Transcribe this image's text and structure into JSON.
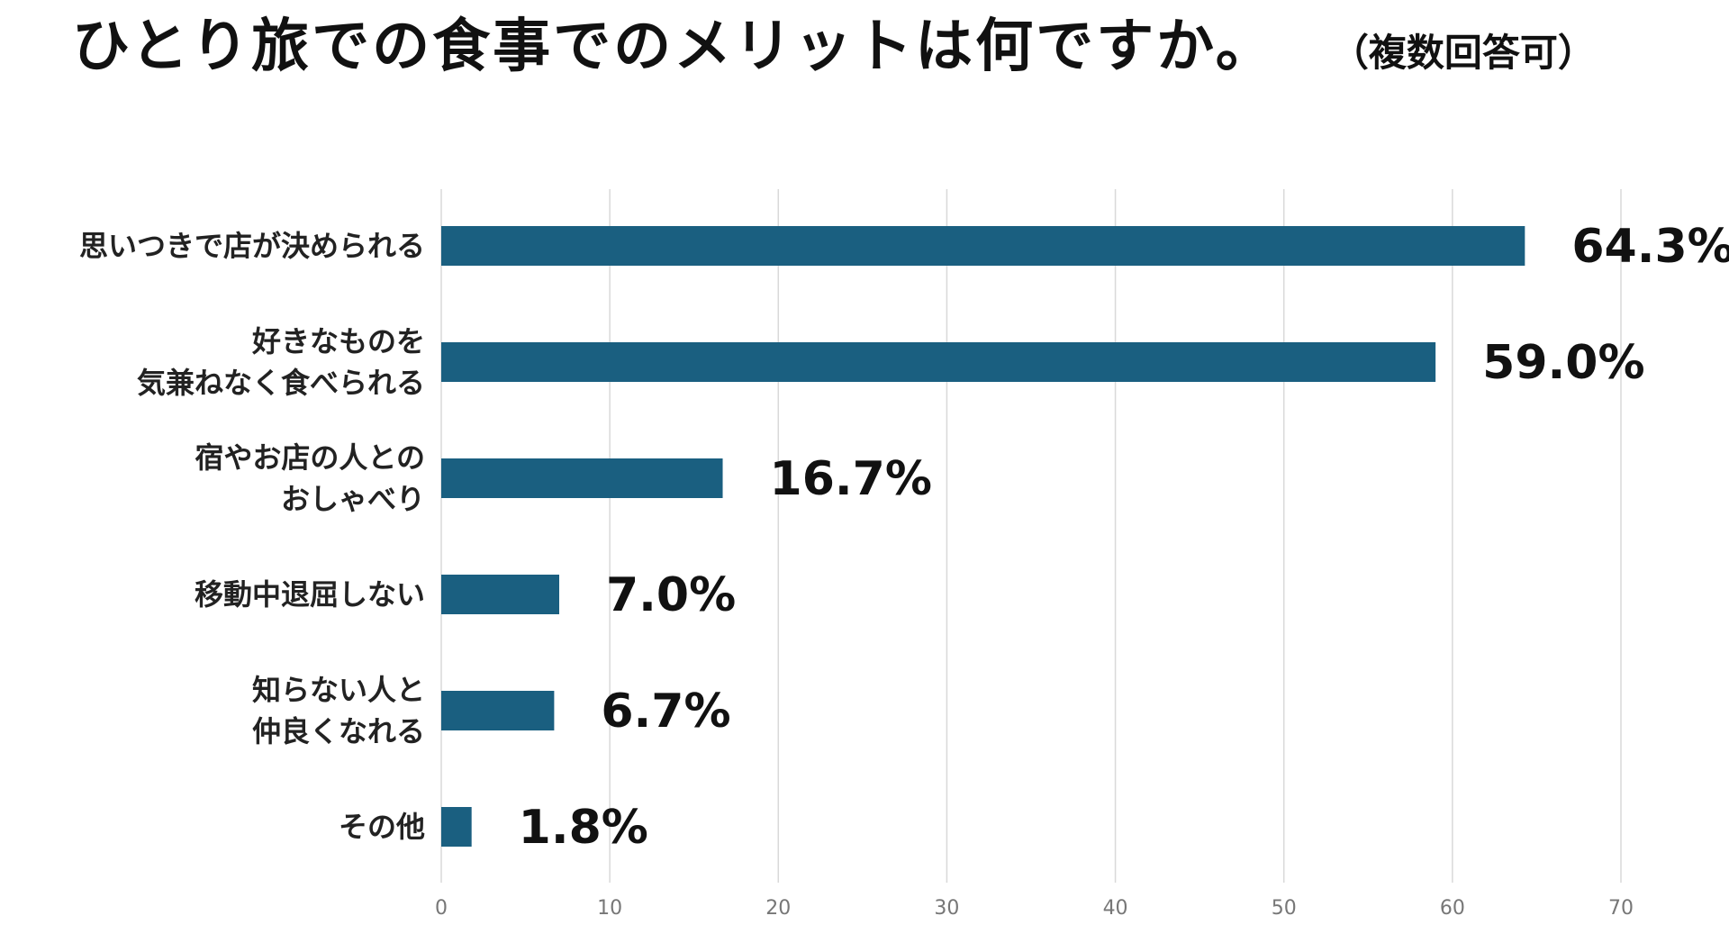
{
  "header": {
    "title": "ひとり旅での食事でのメリットは何ですか。",
    "subtitle": "（複数回答可）"
  },
  "chart_data": {
    "type": "bar",
    "orientation": "horizontal",
    "title": "ひとり旅での食事でのメリットは何ですか。",
    "subtitle": "（複数回答可）",
    "categories": [
      [
        "思いつきで店が決められる"
      ],
      [
        "好きなものを",
        "気兼ねなく食べられる"
      ],
      [
        "宿やお店の人との",
        "おしゃべり"
      ],
      [
        "移動中退屈しない"
      ],
      [
        "知らない人と",
        "仲良くなれる"
      ],
      [
        "その他"
      ]
    ],
    "values": [
      64.3,
      59.0,
      16.7,
      7.0,
      6.7,
      1.8
    ],
    "value_labels": [
      "64.3%",
      "59.0%",
      "16.7%",
      "7.0%",
      "6.7%",
      "1.8%"
    ],
    "xlim": [
      0,
      70
    ],
    "x_ticks": [
      0,
      10,
      20,
      30,
      40,
      50,
      60,
      70
    ],
    "grid": "vertical",
    "legend": "none",
    "colors": {
      "bar": "#1a5f80",
      "grid": "#d9d9d9",
      "tick_text": "#777777"
    }
  }
}
